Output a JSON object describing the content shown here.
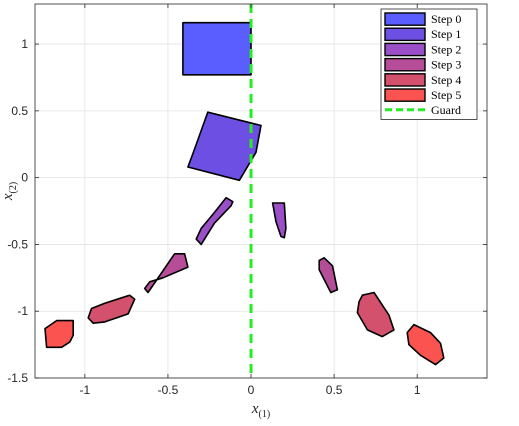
{
  "chart_data": {
    "type": "scatter",
    "xlabel": "x",
    "xlabel_sub": "(1)",
    "ylabel": "x",
    "ylabel_sub": "(2)",
    "xlim": [
      -1.3,
      1.42
    ],
    "ylim": [
      -1.5,
      1.3
    ],
    "xticks": [
      -1,
      -0.5,
      0,
      0.5,
      1
    ],
    "yticks": [
      -1.5,
      -1,
      -0.5,
      0,
      0.5,
      1
    ],
    "xtick_labels": [
      "-1",
      "-0.5",
      "0",
      "0.5",
      "1"
    ],
    "ytick_labels": [
      "-1.5",
      "-1",
      "-0.5",
      "0",
      "0.5",
      "1"
    ],
    "grid": true,
    "legend_position": "top-right",
    "guard": {
      "name": "Guard",
      "x": 0,
      "color": "#22ee22",
      "style": "dashed"
    },
    "series": [
      {
        "name": "Step 0",
        "color": "#5a5eff",
        "polygons": [
          [
            [
              -0.41,
              1.16
            ],
            [
              0,
              1.16
            ],
            [
              0,
              0.77
            ],
            [
              -0.41,
              0.77
            ]
          ]
        ]
      },
      {
        "name": "Step 1",
        "color": "#6d50e3",
        "polygons": [
          [
            [
              -0.26,
              0.49
            ],
            [
              0.06,
              0.39
            ],
            [
              0.03,
              0.19
            ],
            [
              -0.07,
              -0.02
            ],
            [
              -0.38,
              0.08
            ],
            [
              -0.35,
              0.18
            ]
          ]
        ]
      },
      {
        "name": "Step 2",
        "color": "#9a4ec8",
        "polygons": [
          [
            [
              -0.15,
              -0.15
            ],
            [
              -0.11,
              -0.18
            ],
            [
              -0.12,
              -0.21
            ],
            [
              -0.22,
              -0.34
            ],
            [
              -0.3,
              -0.5
            ],
            [
              -0.33,
              -0.46
            ],
            [
              -0.3,
              -0.38
            ],
            [
              -0.22,
              -0.26
            ]
          ],
          [
            [
              0.13,
              -0.19
            ],
            [
              0.2,
              -0.19
            ],
            [
              0.21,
              -0.38
            ],
            [
              0.2,
              -0.45
            ],
            [
              0.18,
              -0.44
            ],
            [
              0.15,
              -0.33
            ]
          ]
        ]
      },
      {
        "name": "Step 3",
        "color": "#b64d98",
        "polygons": [
          [
            [
              -0.4,
              -0.57
            ],
            [
              -0.38,
              -0.67
            ],
            [
              -0.53,
              -0.75
            ],
            [
              -0.61,
              -0.78
            ],
            [
              -0.64,
              -0.83
            ],
            [
              -0.62,
              -0.86
            ],
            [
              -0.57,
              -0.77
            ],
            [
              -0.46,
              -0.57
            ]
          ],
          [
            [
              0.41,
              -0.62
            ],
            [
              0.44,
              -0.6
            ],
            [
              0.49,
              -0.66
            ],
            [
              0.52,
              -0.84
            ],
            [
              0.48,
              -0.86
            ],
            [
              0.41,
              -0.69
            ]
          ]
        ]
      },
      {
        "name": "Step 4",
        "color": "#d3516d",
        "polygons": [
          [
            [
              -0.73,
              -0.88
            ],
            [
              -0.7,
              -0.91
            ],
            [
              -0.74,
              -1.02
            ],
            [
              -0.88,
              -1.08
            ],
            [
              -0.95,
              -1.09
            ],
            [
              -0.98,
              -1.05
            ],
            [
              -0.96,
              -0.98
            ],
            [
              -0.88,
              -0.94
            ]
          ],
          [
            [
              0.67,
              -0.88
            ],
            [
              0.74,
              -0.86
            ],
            [
              0.83,
              -1.03
            ],
            [
              0.86,
              -1.14
            ],
            [
              0.79,
              -1.19
            ],
            [
              0.7,
              -1.14
            ],
            [
              0.64,
              -1.01
            ],
            [
              0.65,
              -0.93
            ]
          ]
        ]
      },
      {
        "name": "Step 5",
        "color": "#fa5350",
        "polygons": [
          [
            [
              -1.24,
              -1.13
            ],
            [
              -1.23,
              -1.27
            ],
            [
              -1.14,
              -1.27
            ],
            [
              -1.09,
              -1.23
            ],
            [
              -1.07,
              -1.18
            ],
            [
              -1.07,
              -1.07
            ],
            [
              -1.17,
              -1.07
            ]
          ],
          [
            [
              0.94,
              -1.16
            ],
            [
              0.98,
              -1.1
            ],
            [
              1.08,
              -1.16
            ],
            [
              1.14,
              -1.24
            ],
            [
              1.16,
              -1.35
            ],
            [
              1.11,
              -1.4
            ],
            [
              1.02,
              -1.33
            ],
            [
              0.95,
              -1.25
            ]
          ]
        ]
      }
    ]
  }
}
